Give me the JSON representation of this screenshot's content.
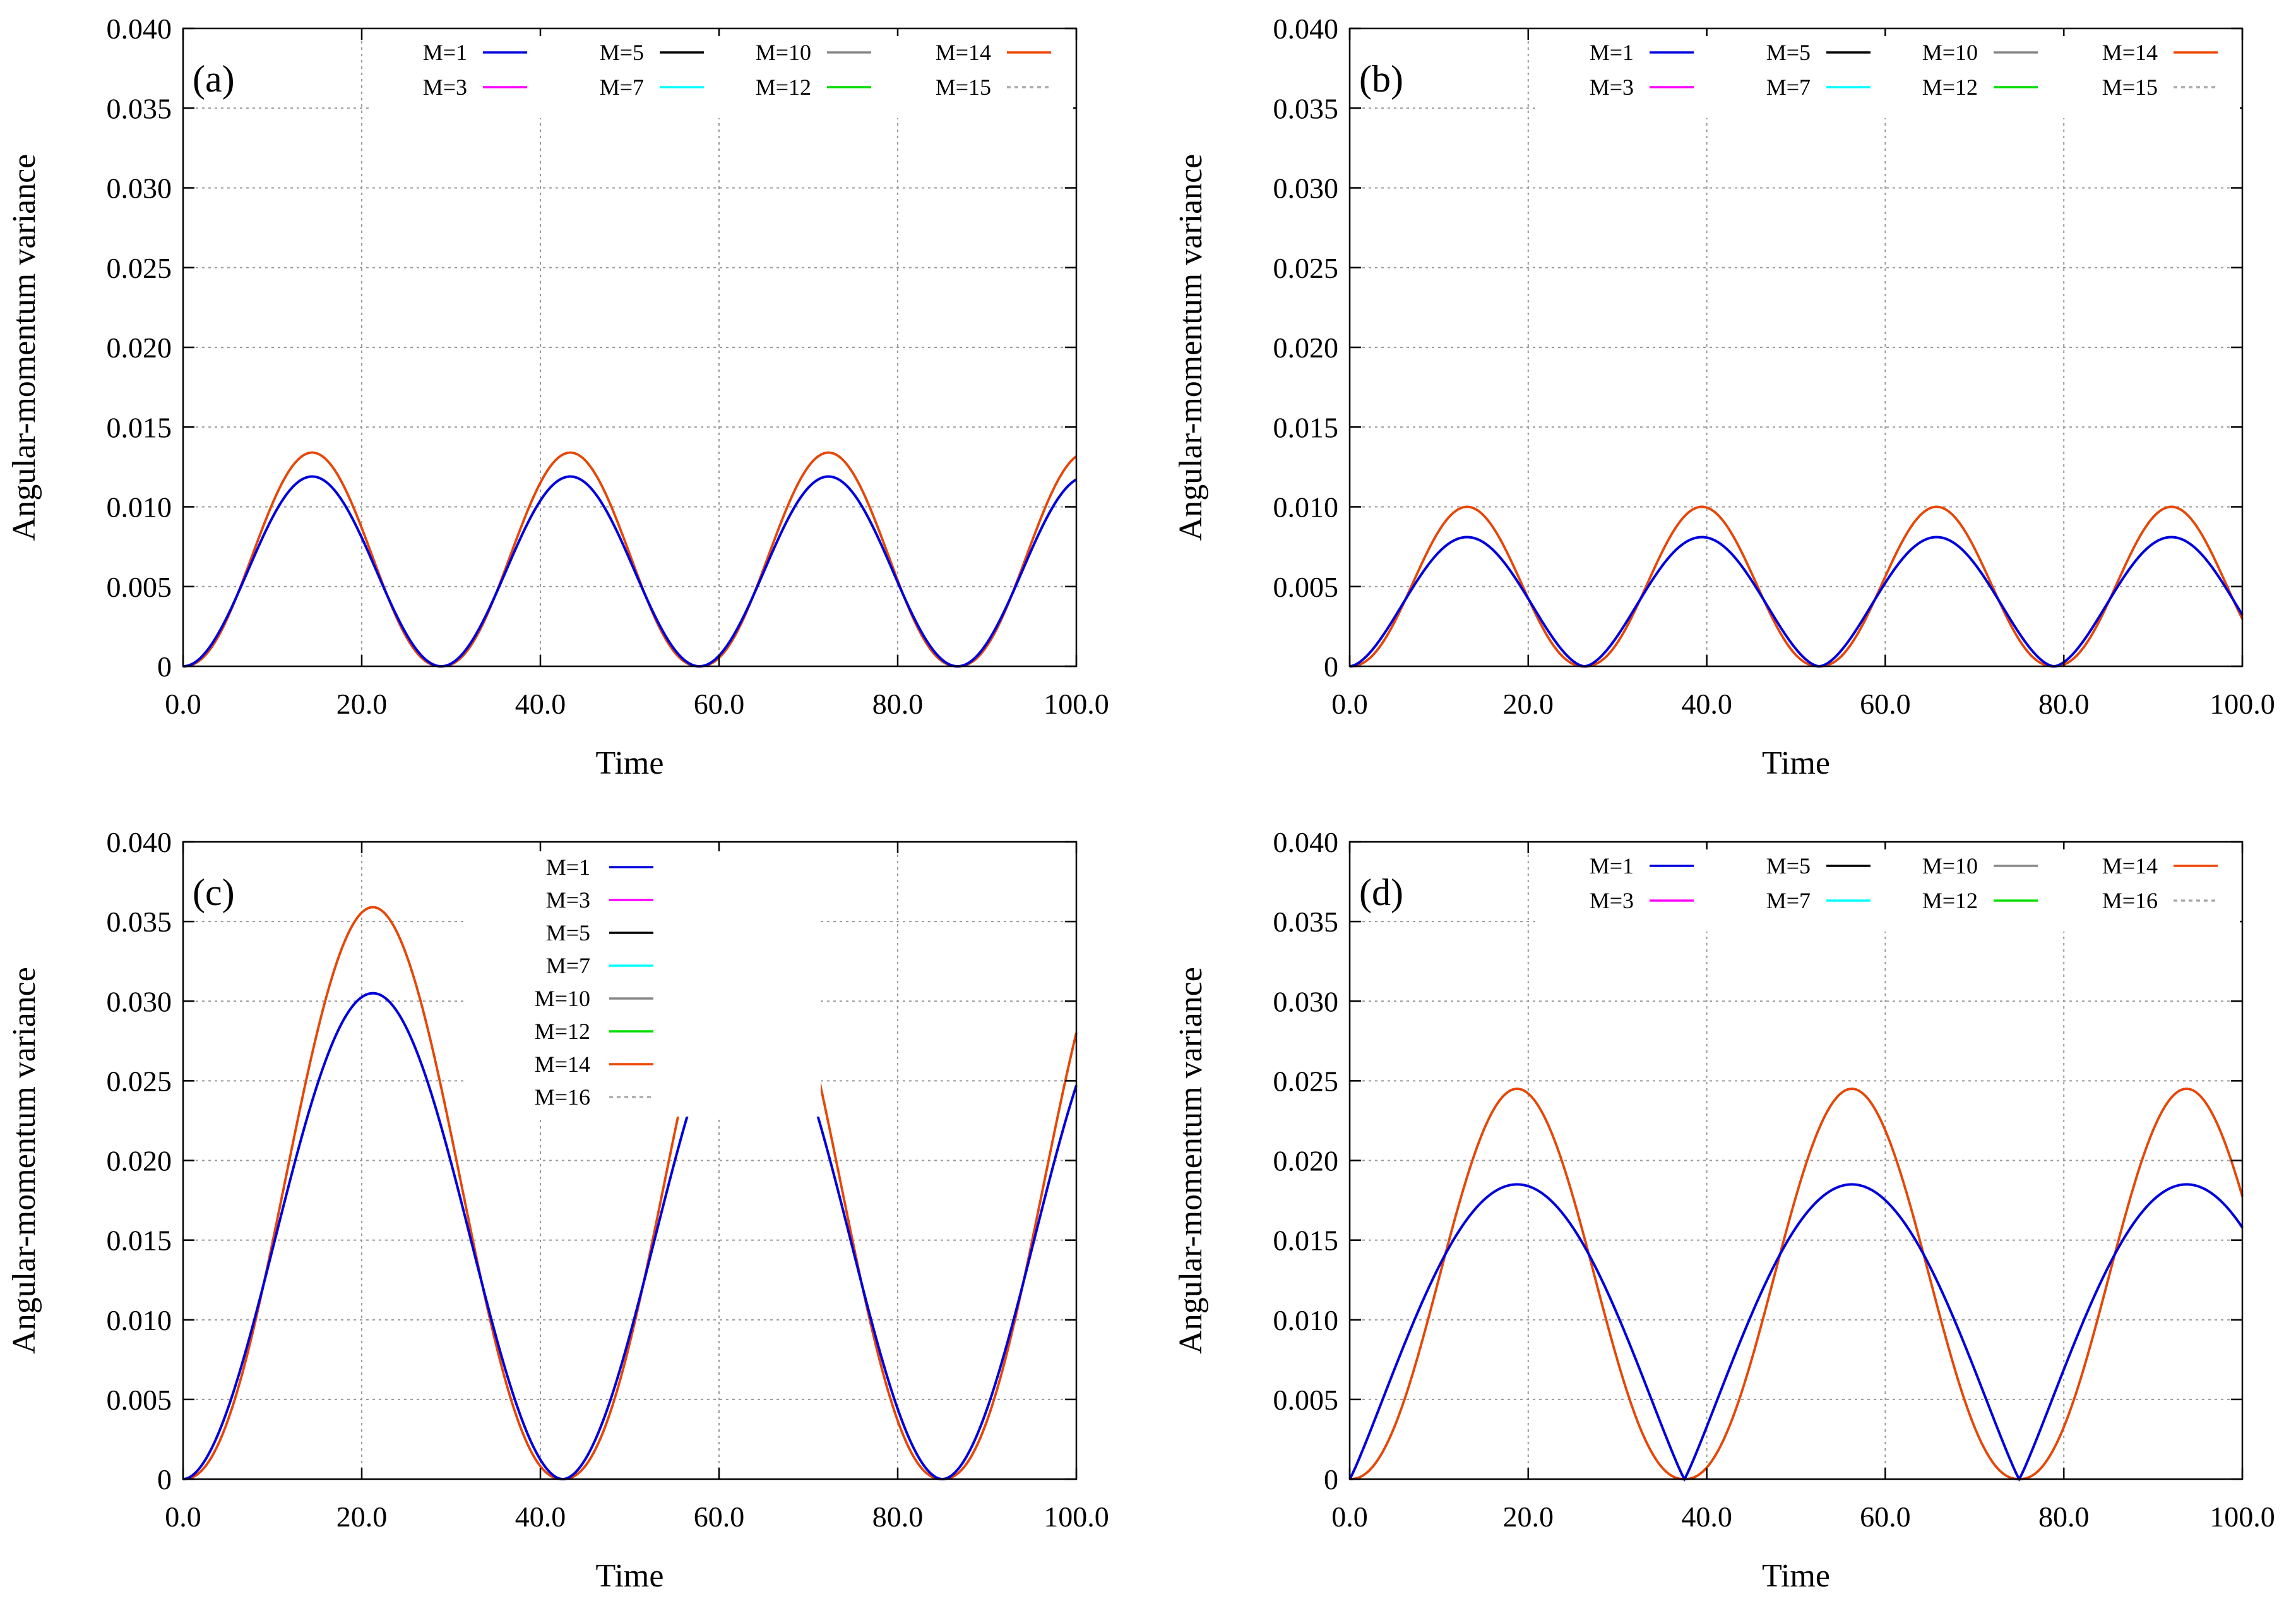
{
  "chart_data": [
    {
      "type": "line",
      "panel_label": "(a)",
      "xlabel": "Time",
      "ylabel": "Angular-momentum variance",
      "xlim": [
        0,
        100
      ],
      "ylim": [
        0,
        0.04
      ],
      "xticks": [
        0,
        20,
        40,
        60,
        80,
        100
      ],
      "xtick_labels": [
        "0.0",
        "20.0",
        "40.0",
        "60.0",
        "80.0",
        "100.0"
      ],
      "yticks": [
        0,
        0.005,
        0.01,
        0.015,
        0.02,
        0.025,
        0.03,
        0.035,
        0.04
      ],
      "ytick_labels": [
        "0",
        "0.005",
        "0.010",
        "0.015",
        "0.020",
        "0.025",
        "0.030",
        "0.035",
        "0.040"
      ],
      "grid": true,
      "legend_layout": "grid-top",
      "legend": [
        "M=1",
        "M=3",
        "M=5",
        "M=7",
        "M=10",
        "M=12",
        "M=14",
        "M=15"
      ],
      "series_curves": {
        "mean_field": {
          "amplitude": 0.0119,
          "period": 28.9,
          "exponent": 1.0
        },
        "converged": {
          "amplitude": 0.0134,
          "period": 28.9,
          "exponent": 1.12
        }
      }
    },
    {
      "type": "line",
      "panel_label": "(b)",
      "xlabel": "Time",
      "ylabel": "Angular-momentum variance",
      "xlim": [
        0,
        100
      ],
      "ylim": [
        0,
        0.04
      ],
      "xticks": [
        0,
        20,
        40,
        60,
        80,
        100
      ],
      "xtick_labels": [
        "0.0",
        "20.0",
        "40.0",
        "60.0",
        "80.0",
        "100.0"
      ],
      "yticks": [
        0,
        0.005,
        0.01,
        0.015,
        0.02,
        0.025,
        0.03,
        0.035,
        0.04
      ],
      "ytick_labels": [
        "0",
        "0.005",
        "0.010",
        "0.015",
        "0.020",
        "0.025",
        "0.030",
        "0.035",
        "0.040"
      ],
      "grid": true,
      "legend_layout": "grid-top",
      "legend": [
        "M=1",
        "M=3",
        "M=5",
        "M=7",
        "M=10",
        "M=12",
        "M=14",
        "M=15"
      ],
      "series_curves": {
        "mean_field": {
          "amplitude": 0.0081,
          "period": 26.3,
          "exponent": 0.85
        },
        "converged": {
          "amplitude": 0.01,
          "period": 26.3,
          "exponent": 1.12
        }
      }
    },
    {
      "type": "line",
      "panel_label": "(c)",
      "xlabel": "Time",
      "ylabel": "Angular-momentum variance",
      "xlim": [
        0,
        100
      ],
      "ylim": [
        0,
        0.04
      ],
      "xticks": [
        0,
        20,
        40,
        60,
        80,
        100
      ],
      "xtick_labels": [
        "0.0",
        "20.0",
        "40.0",
        "60.0",
        "80.0",
        "100.0"
      ],
      "yticks": [
        0,
        0.005,
        0.01,
        0.015,
        0.02,
        0.025,
        0.03,
        0.035,
        0.04
      ],
      "ytick_labels": [
        "0",
        "0.005",
        "0.010",
        "0.015",
        "0.020",
        "0.025",
        "0.030",
        "0.035",
        "0.040"
      ],
      "grid": true,
      "legend_layout": "column",
      "legend": [
        "M=1",
        "M=3",
        "M=5",
        "M=7",
        "M=10",
        "M=12",
        "M=14",
        "M=16"
      ],
      "series_curves": {
        "mean_field": {
          "amplitude": 0.0305,
          "period": 42.5,
          "exponent": 0.95
        },
        "converged": {
          "amplitude": 0.0359,
          "period": 42.5,
          "exponent": 1.12
        }
      }
    },
    {
      "type": "line",
      "panel_label": "(d)",
      "xlabel": "Time",
      "ylabel": "Angular-momentum variance",
      "xlim": [
        0,
        100
      ],
      "ylim": [
        0,
        0.04
      ],
      "xticks": [
        0,
        20,
        40,
        60,
        80,
        100
      ],
      "xtick_labels": [
        "0.0",
        "20.0",
        "40.0",
        "60.0",
        "80.0",
        "100.0"
      ],
      "yticks": [
        0,
        0.005,
        0.01,
        0.015,
        0.02,
        0.025,
        0.03,
        0.035,
        0.04
      ],
      "ytick_labels": [
        "0",
        "0.005",
        "0.010",
        "0.015",
        "0.020",
        "0.025",
        "0.030",
        "0.035",
        "0.040"
      ],
      "grid": true,
      "legend_layout": "grid-top",
      "legend": [
        "M=1",
        "M=3",
        "M=5",
        "M=7",
        "M=10",
        "M=12",
        "M=14",
        "M=16"
      ],
      "series_curves": {
        "mean_field": {
          "amplitude": 0.0185,
          "period": 37.5,
          "exponent": 0.55
        },
        "converged": {
          "amplitude": 0.0245,
          "period": 37.5,
          "exponent": 1.12
        }
      }
    }
  ],
  "legend_colors": {
    "M=1": "#0000dd",
    "M=3": "#ff00ff",
    "M=5": "#000000",
    "M=7": "#00ffff",
    "M=10": "#888888",
    "M=12": "#00dd00",
    "M=14": "#ee4400",
    "M=15": "#aaaaaa",
    "M=16": "#aaaaaa"
  }
}
